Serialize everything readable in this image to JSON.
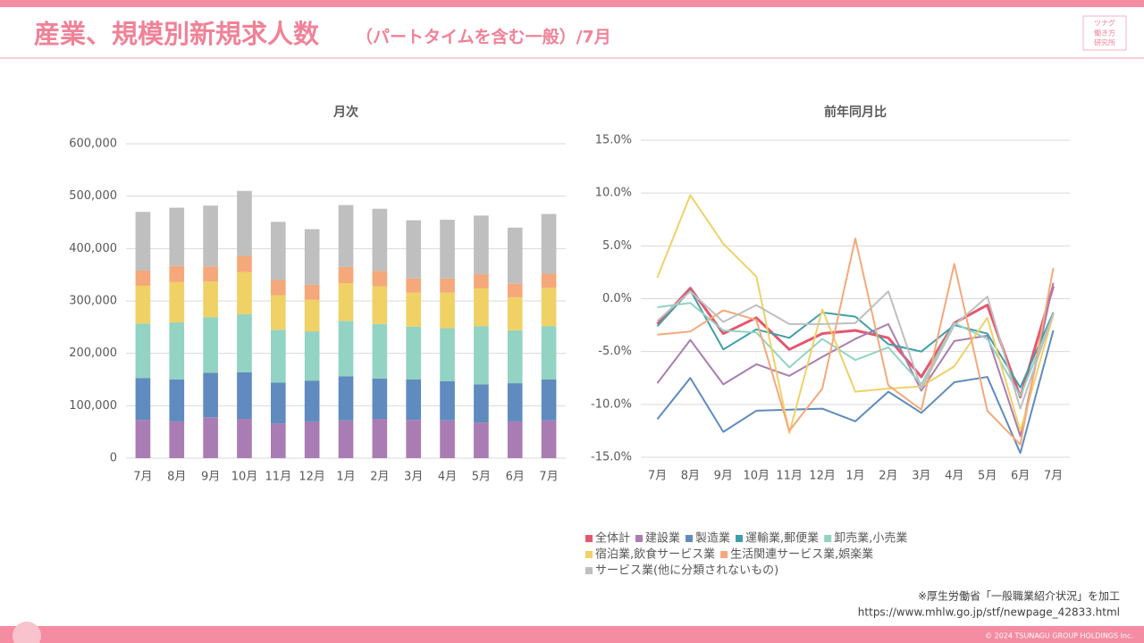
{
  "header": {
    "title": "産業、規模別新規求人数",
    "subtitle": "（パートタイムを含む一般）/7月",
    "logo": [
      "ツナグ",
      "働き方",
      "研究所"
    ]
  },
  "chart_data": [
    {
      "type": "bar",
      "stacked": true,
      "title": "月次",
      "categories": [
        "7月",
        "8月",
        "9月",
        "10月",
        "11月",
        "12月",
        "1月",
        "2月",
        "3月",
        "4月",
        "5月",
        "6月",
        "7月"
      ],
      "series": [
        {
          "color": "#a97db3",
          "values": [
            73000,
            70000,
            78000,
            75000,
            66000,
            70000,
            72000,
            75000,
            73000,
            72000,
            68000,
            70000,
            72000
          ]
        },
        {
          "color": "#5f8bbf",
          "values": [
            80000,
            80000,
            85000,
            89000,
            78000,
            78000,
            84000,
            77000,
            77000,
            75000,
            73000,
            73000,
            78000
          ]
        },
        {
          "color": "#92d3c3",
          "values": [
            104000,
            109000,
            106000,
            111000,
            101000,
            94000,
            106000,
            104000,
            101000,
            101000,
            111000,
            101000,
            102000
          ]
        },
        {
          "color": "#efd166",
          "values": [
            72000,
            77000,
            68000,
            80000,
            66000,
            60000,
            72000,
            72000,
            65000,
            68000,
            72000,
            63000,
            73000
          ]
        },
        {
          "color": "#f5a87a",
          "values": [
            29000,
            31000,
            29000,
            31000,
            29000,
            29000,
            31000,
            29000,
            27000,
            27000,
            27000,
            26000,
            27000
          ]
        },
        {
          "color": "#bfbfbf",
          "values": [
            112000,
            111000,
            116000,
            124000,
            111000,
            106000,
            118000,
            119000,
            111000,
            112000,
            112000,
            107000,
            114000
          ]
        }
      ],
      "ylim": [
        0,
        600000
      ],
      "yticks": [
        0,
        {
          "value": 100000,
          "label": "100,000"
        },
        {
          "value": 200000,
          "label": "200,000"
        },
        {
          "value": 300000,
          "label": "300,000"
        },
        {
          "value": 400000,
          "label": "400,000"
        },
        {
          "value": 500000,
          "label": "500,000"
        },
        {
          "value": 600000,
          "label": "600,000"
        }
      ],
      "grid": true
    },
    {
      "type": "line",
      "title": "前年同月比",
      "categories": [
        "7月",
        "8月",
        "9月",
        "10月",
        "11月",
        "12月",
        "1月",
        "2月",
        "3月",
        "4月",
        "5月",
        "6月",
        "7月"
      ],
      "series": [
        {
          "name": "全体計",
          "color": "#e5566f",
          "values": [
            -2.4,
            1.0,
            -3.3,
            -1.8,
            -4.8,
            -3.3,
            -3.0,
            -3.7,
            -7.4,
            -2.3,
            -0.6,
            -9.3,
            1.2
          ]
        },
        {
          "name": "建設業",
          "color": "#a97db3",
          "values": [
            -8.0,
            -3.9,
            -8.1,
            -6.2,
            -7.3,
            -5.5,
            -3.8,
            -2.4,
            -8.7,
            -4.0,
            -3.5,
            -13.0,
            1.5
          ]
        },
        {
          "name": "製造業",
          "color": "#5f8bbf",
          "values": [
            -11.4,
            -7.5,
            -12.6,
            -10.6,
            -10.5,
            -10.4,
            -11.6,
            -8.8,
            -10.8,
            -7.9,
            -7.4,
            -14.6,
            -3.0
          ]
        },
        {
          "name": "運輸業,郵便業",
          "color": "#3f9fa9",
          "values": [
            -2.6,
            0.8,
            -4.8,
            -2.9,
            -3.7,
            -1.3,
            -1.7,
            -4.3,
            -5.0,
            -2.5,
            -3.3,
            -8.4,
            -1.3
          ]
        },
        {
          "name": "卸売業,小売業",
          "color": "#92d3c3",
          "values": [
            -0.8,
            -0.4,
            -3.0,
            -3.2,
            -6.5,
            -3.8,
            -5.8,
            -4.6,
            -8.1,
            -2.3,
            -3.8,
            -9.2,
            -1.5
          ]
        },
        {
          "name": "宿泊業,飲食サービス業",
          "color": "#efd166",
          "values": [
            2.0,
            9.8,
            5.2,
            2.1,
            -12.7,
            -1.0,
            -8.8,
            -8.5,
            -8.3,
            -6.4,
            -1.8,
            -12.5,
            -1.5
          ]
        },
        {
          "name": "生活関連サービス業,娯楽業",
          "color": "#f5a87a",
          "values": [
            -3.4,
            -3.1,
            -1.1,
            -2.0,
            -12.5,
            -8.5,
            5.7,
            -8.2,
            -10.5,
            3.3,
            -10.6,
            -13.8,
            2.9
          ]
        },
        {
          "name": "サービス業(他に分類されないもの)",
          "color": "#bfbfbf",
          "values": [
            -2.1,
            0.7,
            -2.2,
            -0.6,
            -2.4,
            -2.4,
            -2.3,
            0.7,
            -8.5,
            -2.5,
            0.2,
            -10.4,
            -1.4
          ]
        }
      ],
      "ylim": [
        -15,
        15
      ],
      "yticks": [
        {
          "value": -15,
          "label": "-15.0%"
        },
        {
          "value": -10,
          "label": "-10.0%"
        },
        {
          "value": -5,
          "label": "-5.0%"
        },
        {
          "value": 0,
          "label": "0.0%"
        },
        {
          "value": 5,
          "label": "5.0%"
        },
        {
          "value": 10,
          "label": "10.0%"
        },
        {
          "value": 15,
          "label": "15.0%"
        }
      ],
      "grid": true,
      "legend": "bottom"
    }
  ],
  "source": {
    "note": "※厚生労働省「一般職業紹介状況」を加工",
    "url": "https://www.mhlw.go.jp/stf/newpage_42833.html"
  },
  "footer": {
    "copyright": "© 2024 TSUNAGU GROUP HOLDINGS Inc."
  }
}
